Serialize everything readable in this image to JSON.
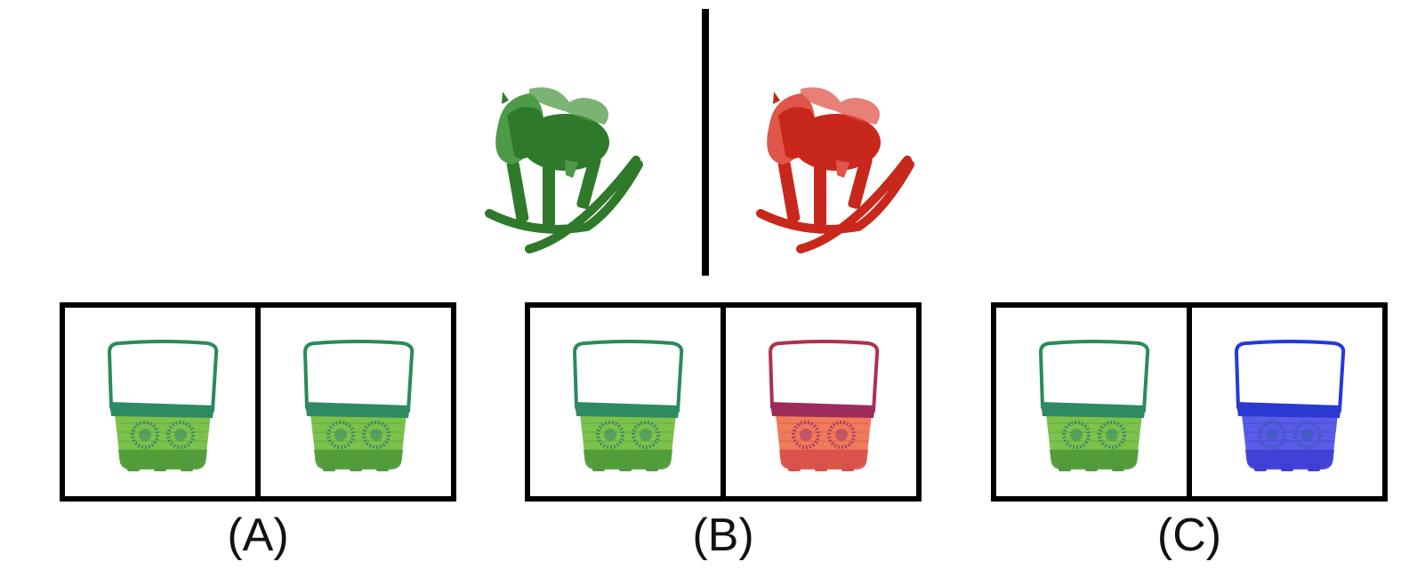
{
  "reference_pair": {
    "left": {
      "object": "rocking-horse",
      "color": "#2f7a2a",
      "shade": "#245f20",
      "light": "#4f9a46"
    },
    "right": {
      "object": "rocking-horse",
      "color": "#c8281c",
      "shade": "#a31f15",
      "light": "#e0564b"
    }
  },
  "options": [
    {
      "label": "(A)",
      "left": {
        "object": "basket",
        "handle": "#2a8a5a",
        "rim": "#2e8a62",
        "body": "#7cc24a",
        "body_dark": "#4f9a3a",
        "flower": "#3f8a6a"
      },
      "right": {
        "object": "basket",
        "handle": "#2a8a5a",
        "rim": "#2e8a62",
        "body": "#7cc24a",
        "body_dark": "#4f9a3a",
        "flower": "#3f8a6a"
      }
    },
    {
      "label": "(B)",
      "left": {
        "object": "basket",
        "handle": "#2a8a5a",
        "rim": "#2e8a62",
        "body": "#7cc24a",
        "body_dark": "#4f9a3a",
        "flower": "#3f8a6a"
      },
      "right": {
        "object": "basket",
        "handle": "#b0304e",
        "rim": "#9e2c5a",
        "body": "#f07a5a",
        "body_dark": "#d85048",
        "flower": "#a8406a"
      }
    },
    {
      "label": "(C)",
      "left": {
        "object": "basket",
        "handle": "#2a8a5a",
        "rim": "#2e8a62",
        "body": "#7cc24a",
        "body_dark": "#4f9a3a",
        "flower": "#3f8a6a"
      },
      "right": {
        "object": "basket",
        "handle": "#2438e0",
        "rim": "#2a3ad0",
        "body": "#5a5ce8",
        "body_dark": "#3e3ed6",
        "flower": "#3a5ab8"
      }
    }
  ]
}
